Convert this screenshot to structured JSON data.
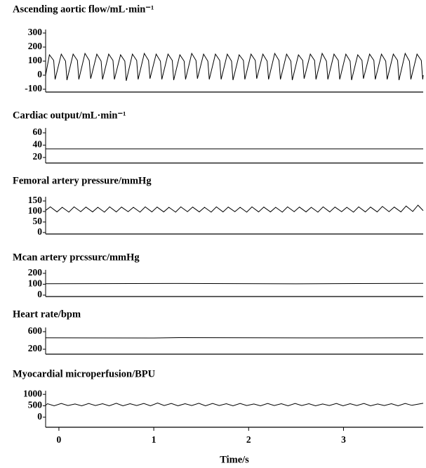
{
  "chart_data": [
    {
      "type": "line",
      "title": "Ascending aortic flow/mL·min⁻¹",
      "color": "#000000",
      "xlim": [
        -0.14,
        3.84
      ],
      "ylim": [
        -120,
        325
      ],
      "yticks": [
        300,
        200,
        100,
        0,
        -100
      ],
      "x": [
        -0.14,
        -0.1,
        -0.055,
        -0.04,
        0.025,
        0.07,
        0.085,
        0.15,
        0.195,
        0.21,
        0.275,
        0.32,
        0.335,
        0.4,
        0.445,
        0.46,
        0.525,
        0.57,
        0.585,
        0.65,
        0.695,
        0.71,
        0.775,
        0.82,
        0.835,
        0.9,
        0.945,
        0.96,
        1.025,
        1.07,
        1.085,
        1.15,
        1.195,
        1.21,
        1.275,
        1.32,
        1.335,
        1.4,
        1.445,
        1.46,
        1.525,
        1.57,
        1.585,
        1.65,
        1.695,
        1.71,
        1.775,
        1.82,
        1.835,
        1.9,
        1.945,
        1.96,
        2.025,
        2.07,
        2.085,
        2.15,
        2.195,
        2.21,
        2.275,
        2.32,
        2.335,
        2.4,
        2.445,
        2.46,
        2.525,
        2.57,
        2.585,
        2.65,
        2.695,
        2.71,
        2.775,
        2.82,
        2.835,
        2.9,
        2.945,
        2.96,
        3.025,
        3.07,
        3.085,
        3.15,
        3.195,
        3.21,
        3.275,
        3.32,
        3.335,
        3.4,
        3.445,
        3.46,
        3.525,
        3.57,
        3.585,
        3.65,
        3.695,
        3.71,
        3.775,
        3.82,
        3.835,
        3.84
      ],
      "values": [
        0,
        145,
        105,
        -30,
        150,
        100,
        -35,
        150,
        105,
        -30,
        155,
        105,
        -25,
        150,
        100,
        -30,
        150,
        105,
        -30,
        145,
        100,
        -40,
        150,
        105,
        -30,
        155,
        105,
        -25,
        150,
        100,
        -30,
        150,
        105,
        -35,
        145,
        100,
        -30,
        155,
        105,
        -25,
        150,
        100,
        -30,
        150,
        105,
        -30,
        150,
        100,
        -35,
        145,
        105,
        -30,
        150,
        105,
        -25,
        150,
        100,
        -30,
        155,
        105,
        -30,
        150,
        100,
        -35,
        145,
        105,
        -25,
        150,
        105,
        -30,
        155,
        100,
        -30,
        150,
        105,
        -30,
        150,
        100,
        -35,
        145,
        105,
        -25,
        150,
        105,
        -30,
        150,
        100,
        -30,
        150,
        105,
        -35,
        155,
        100,
        -30,
        150,
        105,
        -30,
        0
      ]
    },
    {
      "type": "line",
      "title": "Cardiac output/mL·min⁻¹",
      "color": "#000000",
      "xlim": [
        -0.14,
        3.84
      ],
      "ylim": [
        11,
        68
      ],
      "yticks": [
        60,
        40,
        20
      ],
      "x": [
        -0.14,
        3.84
      ],
      "values": [
        34,
        34
      ]
    },
    {
      "type": "line",
      "title": "Femoral artery pressure/mmHg",
      "color": "#000000",
      "xlim": [
        -0.14,
        3.84
      ],
      "ylim": [
        -7,
        170
      ],
      "yticks": [
        150,
        100,
        50,
        0
      ],
      "x": [
        -0.14,
        -0.09,
        -0.02,
        0.035,
        0.105,
        0.16,
        0.23,
        0.285,
        0.355,
        0.41,
        0.48,
        0.535,
        0.605,
        0.66,
        0.73,
        0.785,
        0.855,
        0.91,
        0.98,
        1.035,
        1.105,
        1.16,
        1.23,
        1.285,
        1.355,
        1.41,
        1.48,
        1.535,
        1.605,
        1.66,
        1.73,
        1.785,
        1.855,
        1.91,
        1.98,
        2.035,
        2.105,
        2.16,
        2.23,
        2.285,
        2.355,
        2.41,
        2.48,
        2.535,
        2.605,
        2.66,
        2.73,
        2.785,
        2.855,
        2.91,
        2.98,
        3.035,
        3.105,
        3.16,
        3.23,
        3.285,
        3.355,
        3.41,
        3.48,
        3.535,
        3.605,
        3.66,
        3.73,
        3.785,
        3.84
      ],
      "values": [
        105,
        122,
        98,
        120,
        97,
        122,
        99,
        121,
        98,
        120,
        97,
        122,
        98,
        121,
        99,
        120,
        97,
        122,
        98,
        121,
        98,
        120,
        97,
        122,
        99,
        121,
        98,
        120,
        97,
        122,
        98,
        121,
        99,
        120,
        97,
        122,
        98,
        121,
        98,
        120,
        97,
        122,
        99,
        121,
        98,
        120,
        97,
        122,
        98,
        121,
        99,
        120,
        97,
        122,
        98,
        121,
        98,
        124,
        99,
        121,
        98,
        126,
        100,
        130,
        104
      ]
    },
    {
      "type": "line",
      "title": "Mcan artery prcssurc/mmHg",
      "color": "#000000",
      "xlim": [
        -0.14,
        3.84
      ],
      "ylim": [
        -13,
        232
      ],
      "yticks": [
        200,
        100,
        0
      ],
      "x": [
        -0.14,
        1.2,
        2.5,
        3.84
      ],
      "values": [
        105,
        107,
        104,
        108
      ]
    },
    {
      "type": "line",
      "title": "Heart rate/bpm",
      "color": "#000000",
      "xlim": [
        -0.14,
        3.84
      ],
      "ylim": [
        88,
        696
      ],
      "yticks": [
        600,
        200
      ],
      "x": [
        -0.14,
        1.0,
        1.3,
        2.6,
        3.84
      ],
      "values": [
        460,
        455,
        465,
        458,
        460
      ]
    },
    {
      "type": "line",
      "title": "Myocardial microperfusion/BPU",
      "color": "#000000",
      "xlim": [
        -0.14,
        3.84
      ],
      "ylim": [
        -440,
        1160
      ],
      "yticks": [
        1000,
        500,
        0
      ],
      "xticks": [
        0,
        1,
        2,
        3
      ],
      "xlabel": "Time/s",
      "x": [
        -0.14,
        -0.12,
        -0.05,
        0.025,
        0.095,
        0.17,
        0.24,
        0.315,
        0.385,
        0.46,
        0.53,
        0.605,
        0.675,
        0.75,
        0.82,
        0.895,
        0.965,
        1.04,
        1.11,
        1.185,
        1.255,
        1.33,
        1.4,
        1.475,
        1.545,
        1.62,
        1.69,
        1.765,
        1.835,
        1.91,
        1.98,
        2.055,
        2.125,
        2.2,
        2.27,
        2.345,
        2.415,
        2.49,
        2.56,
        2.635,
        2.705,
        2.78,
        2.85,
        2.925,
        2.995,
        3.07,
        3.14,
        3.215,
        3.285,
        3.36,
        3.43,
        3.505,
        3.575,
        3.65,
        3.72,
        3.84
      ],
      "values": [
        520,
        590,
        500,
        600,
        510,
        580,
        500,
        600,
        510,
        590,
        500,
        610,
        500,
        590,
        510,
        600,
        500,
        620,
        510,
        600,
        500,
        590,
        510,
        610,
        500,
        600,
        510,
        590,
        500,
        600,
        510,
        580,
        500,
        600,
        510,
        590,
        500,
        600,
        510,
        590,
        500,
        580,
        510,
        600,
        500,
        590,
        510,
        600,
        500,
        580,
        510,
        590,
        500,
        600,
        520,
        610
      ]
    }
  ]
}
